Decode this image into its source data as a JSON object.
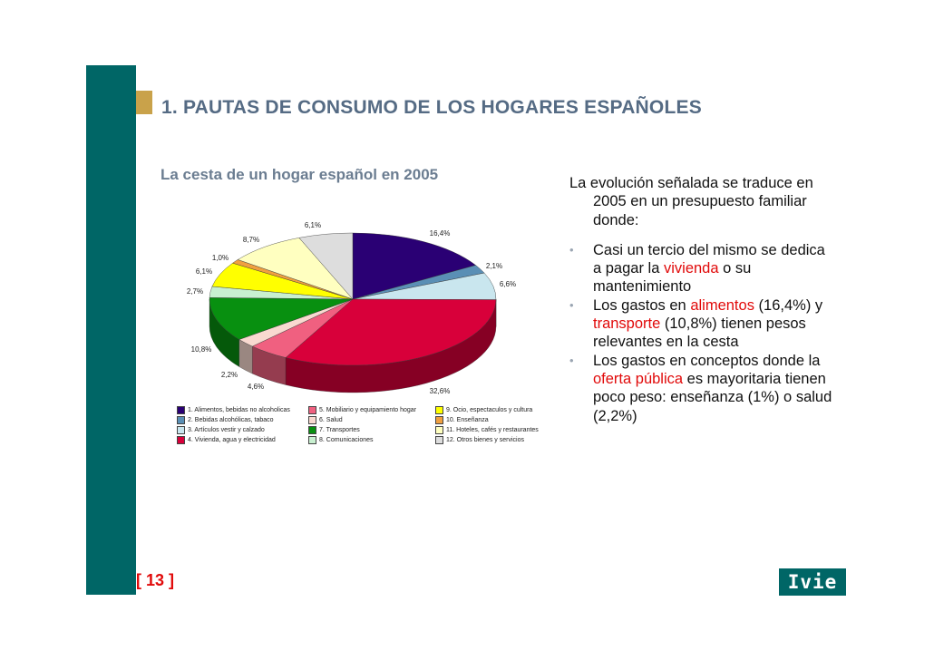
{
  "header": {
    "title": "1. PAUTAS DE CONSUMO DE LOS HOGARES ESPAÑOLES",
    "subtitle": "La cesta de un hogar español en 2005"
  },
  "footer": {
    "page_number": "[ 13 ]",
    "logo_text": "Ivie"
  },
  "text": {
    "intro": "La evolución señalada se traduce en 2005 en un presupuesto familiar donde:",
    "bullet_char": "•",
    "b1_a": "Casi un tercio del mismo se dedica a pagar la ",
    "b1_hl": "vivienda",
    "b1_b": " o su mantenimiento",
    "b2_a": "Los gastos en ",
    "b2_hl1": "alimentos",
    "b2_b": " (16,4%) y ",
    "b2_hl2": "transporte",
    "b2_c": " (10,8%) tienen pesos relevantes en la cesta",
    "b3_a": "Los gastos en conceptos donde la ",
    "b3_hl": "oferta pública",
    "b3_b": " es mayoritaria tienen poco peso: enseñanza (1%) o salud (2,2%)"
  },
  "chart_data": {
    "type": "pie",
    "title": "La cesta de un hogar español en 2005",
    "categories": [
      "1. Alimentos, bebidas no alcoholicas",
      "2. Bebidas alcohólicas, tabaco",
      "3. Artículos vestir y calzado",
      "4. Vivienda, agua y electricidad",
      "5. Mobiliario y equipamiento hogar",
      "6. Salud",
      "7. Transportes",
      "8. Comunicaciones",
      "9. Ocio, espectaculos y cultura",
      "10. Enseñanza",
      "11. Hoteles, cafés y restaurantes",
      "12. Otros bienes y servicios"
    ],
    "values": [
      16.4,
      2.1,
      6.6,
      32.6,
      4.6,
      2.2,
      10.8,
      2.7,
      6.1,
      1.0,
      8.7,
      6.1
    ],
    "labels": [
      "16,4%",
      "2,1%",
      "6,6%",
      "32,6%",
      "4,6%",
      "2,2%",
      "10,8%",
      "2,7%",
      "6,1%",
      "1,0%",
      "8,7%",
      "6,1%"
    ],
    "colors": [
      "#2a0074",
      "#5a8fb5",
      "#c9e6ee",
      "#d8003a",
      "#f06080",
      "#f9d9d0",
      "#089010",
      "#c8f0d0",
      "#ffff00",
      "#f0a040",
      "#ffffc0",
      "#dddddd"
    ],
    "legend_position": "bottom"
  }
}
